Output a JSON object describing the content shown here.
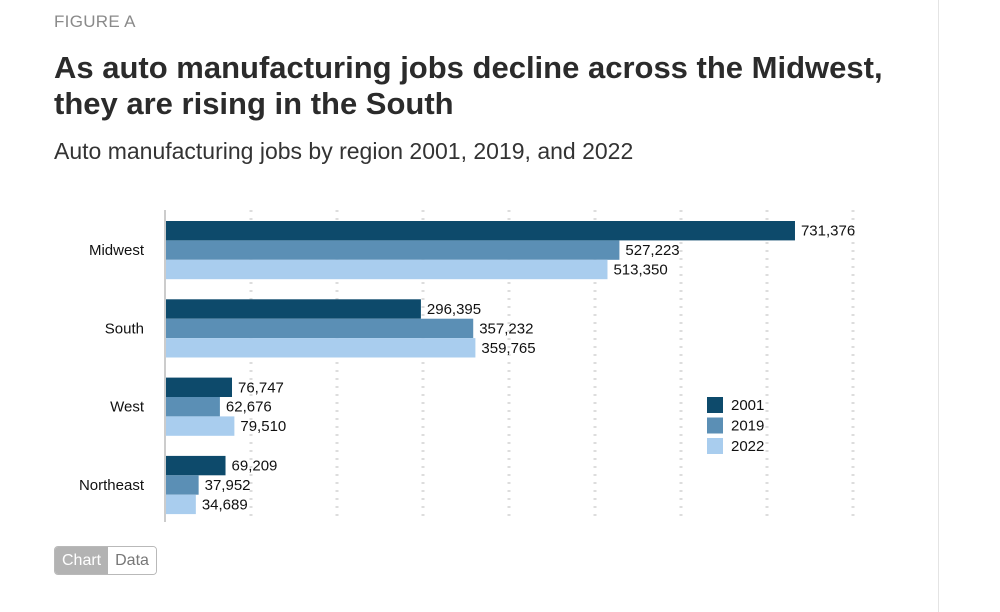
{
  "figure_label": "FIGURE A",
  "title": "As auto manufacturing jobs decline across the Midwest, they are rising in the South",
  "subtitle": "Auto manufacturing jobs by region 2001, 2019, and 2022",
  "toggle": {
    "chart_label": "Chart",
    "data_label": "Data",
    "selected": "Chart"
  },
  "colors": {
    "2001": "#0d4a6b",
    "2019": "#5b8fb5",
    "2022": "#a9cdee",
    "grid": "#dddddd",
    "axis": "#999999"
  },
  "chart_data": {
    "type": "bar",
    "orientation": "horizontal",
    "categories": [
      "Midwest",
      "South",
      "West",
      "Northeast"
    ],
    "series": [
      {
        "name": "2001",
        "values": [
          731376,
          296395,
          76747,
          69209
        ]
      },
      {
        "name": "2019",
        "values": [
          527223,
          357232,
          62676,
          37952
        ]
      },
      {
        "name": "2022",
        "values": [
          513350,
          359765,
          79510,
          34689
        ]
      }
    ],
    "value_labels": {
      "2001": [
        "731,376",
        "296,395",
        "76,747",
        "69,209"
      ],
      "2019": [
        "527,223",
        "357,232",
        "62,676",
        "37,952"
      ],
      "2022": [
        "513,350",
        "359,765",
        "79,510",
        "34,689"
      ]
    },
    "xlim": [
      0,
      800000
    ],
    "grid": true,
    "legend_position": "right"
  }
}
